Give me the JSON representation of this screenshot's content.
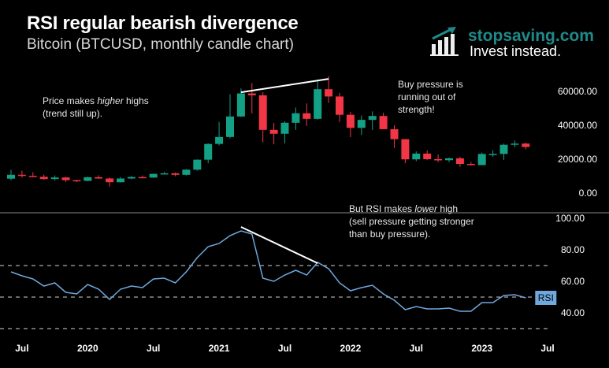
{
  "header": {
    "title": "RSI regular bearish divergence",
    "subtitle": "Bitcoin (BTCUSD, monthly candle chart)"
  },
  "brand": {
    "name": "stopsaving.com",
    "tagline": "Invest instead.",
    "color": "#1f8a8a"
  },
  "annotations": {
    "price_note_pre": "Price makes ",
    "price_note_em": "higher",
    "price_note_post": " highs",
    "price_note_line2": "(trend still up).",
    "buy_note_1": "Buy pressure is",
    "buy_note_2": "running out of",
    "buy_note_3": "strength!",
    "rsi_note_pre": "But RSI makes ",
    "rsi_note_em": "lower",
    "rsi_note_post": " high",
    "rsi_note_2": "(sell pressure getting stronger",
    "rsi_note_3": "than buy pressure)."
  },
  "chart_data": [
    {
      "type": "candlestick",
      "title": "",
      "xlabel": "",
      "ylabel": "",
      "ylim": [
        0,
        60000
      ],
      "y_ticks": [
        "60000.00",
        "40000.00",
        "20000.00",
        "0.00"
      ],
      "colors": {
        "up": "#13a085",
        "down": "#f23645",
        "trendline": "#ffffff"
      },
      "months": [
        "2019-06",
        "2019-07",
        "2019-08",
        "2019-09",
        "2019-10",
        "2019-11",
        "2019-12",
        "2020-01",
        "2020-02",
        "2020-03",
        "2020-04",
        "2020-05",
        "2020-06",
        "2020-07",
        "2020-08",
        "2020-09",
        "2020-10",
        "2020-11",
        "2020-12",
        "2021-01",
        "2021-02",
        "2021-03",
        "2021-04",
        "2021-05",
        "2021-06",
        "2021-07",
        "2021-08",
        "2021-09",
        "2021-10",
        "2021-11",
        "2021-12",
        "2022-01",
        "2022-02",
        "2022-03",
        "2022-04",
        "2022-05",
        "2022-06",
        "2022-07",
        "2022-08",
        "2022-09",
        "2022-10",
        "2022-11",
        "2022-12",
        "2023-01",
        "2023-02",
        "2023-03",
        "2023-04",
        "2023-05"
      ],
      "ohlc": [
        [
          8500,
          13800,
          7500,
          10800
        ],
        [
          10800,
          13200,
          9100,
          10100
        ],
        [
          10100,
          12300,
          9400,
          9600
        ],
        [
          9600,
          10900,
          7800,
          8300
        ],
        [
          8300,
          10400,
          7400,
          9200
        ],
        [
          9200,
          9500,
          6500,
          7600
        ],
        [
          7600,
          7800,
          6400,
          7200
        ],
        [
          7200,
          9600,
          6900,
          9350
        ],
        [
          9350,
          10500,
          8400,
          8600
        ],
        [
          8600,
          9200,
          3800,
          6400
        ],
        [
          6400,
          9500,
          6200,
          8600
        ],
        [
          8600,
          10100,
          8100,
          9450
        ],
        [
          9450,
          10400,
          8900,
          9140
        ],
        [
          9140,
          11450,
          8950,
          11350
        ],
        [
          11350,
          12500,
          11100,
          11650
        ],
        [
          11650,
          12100,
          9900,
          10780
        ],
        [
          10780,
          14100,
          10400,
          13800
        ],
        [
          13800,
          19900,
          13200,
          19700
        ],
        [
          19700,
          29300,
          17600,
          29000
        ],
        [
          29000,
          42000,
          28100,
          33100
        ],
        [
          33100,
          58400,
          32300,
          45200
        ],
        [
          45200,
          61800,
          44900,
          58800
        ],
        [
          58800,
          64900,
          47000,
          57700
        ],
        [
          57700,
          59500,
          30000,
          37300
        ],
        [
          37300,
          41300,
          28800,
          35000
        ],
        [
          35000,
          42400,
          29300,
          41500
        ],
        [
          41500,
          50500,
          37300,
          47100
        ],
        [
          47100,
          52900,
          39600,
          43800
        ],
        [
          43800,
          67000,
          43300,
          61300
        ],
        [
          61300,
          69000,
          53200,
          57000
        ],
        [
          57000,
          59100,
          42000,
          46200
        ],
        [
          46200,
          47900,
          33000,
          38500
        ],
        [
          38500,
          45800,
          34300,
          43200
        ],
        [
          43200,
          48200,
          37200,
          45500
        ],
        [
          45500,
          47400,
          37700,
          37700
        ],
        [
          37700,
          40000,
          26700,
          31800
        ],
        [
          31800,
          31900,
          17600,
          19900
        ],
        [
          19900,
          24600,
          18800,
          23300
        ],
        [
          23300,
          25200,
          19600,
          20000
        ],
        [
          20000,
          22800,
          18200,
          19400
        ],
        [
          19400,
          21000,
          18200,
          20500
        ],
        [
          20500,
          21400,
          15500,
          17200
        ],
        [
          17200,
          18400,
          16300,
          16500
        ],
        [
          16500,
          23900,
          16500,
          23100
        ],
        [
          23100,
          25200,
          21400,
          23100
        ],
        [
          23100,
          29200,
          19600,
          28500
        ],
        [
          28500,
          31000,
          27000,
          29200
        ],
        [
          29200,
          29800,
          25800,
          27200
        ]
      ],
      "trendline": [
        [
          "2021-03",
          59500
        ],
        [
          "2021-11",
          67400
        ]
      ]
    },
    {
      "type": "line",
      "title": "",
      "xlabel": "",
      "ylabel": "",
      "ylim": [
        25,
        100
      ],
      "y_ticks": [
        "100.00",
        "80.00",
        "60.00",
        "40.00"
      ],
      "levels": [
        70,
        50,
        30
      ],
      "x_ticks": [
        "Jul",
        "2020",
        "Jul",
        "2021",
        "Jul",
        "2022",
        "Jul",
        "2023",
        "Jul"
      ],
      "series": [
        {
          "name": "RSI",
          "color": "#6fa8dc",
          "values": [
            66,
            63.5,
            61.5,
            57,
            59,
            53,
            52,
            58,
            55,
            48.5,
            55,
            57,
            56,
            61.5,
            62,
            59,
            66,
            75,
            82,
            84,
            89,
            92,
            90,
            62,
            60,
            64,
            67,
            64,
            72,
            68,
            59,
            54,
            56,
            57.5,
            52,
            48,
            42,
            44,
            42.5,
            42.5,
            43,
            41,
            41,
            46.5,
            46.5,
            51,
            51.5,
            49.5
          ]
        }
      ],
      "trendline": [
        [
          "2021-03",
          94.5
        ],
        [
          "2021-10",
          71.5
        ]
      ]
    }
  ]
}
